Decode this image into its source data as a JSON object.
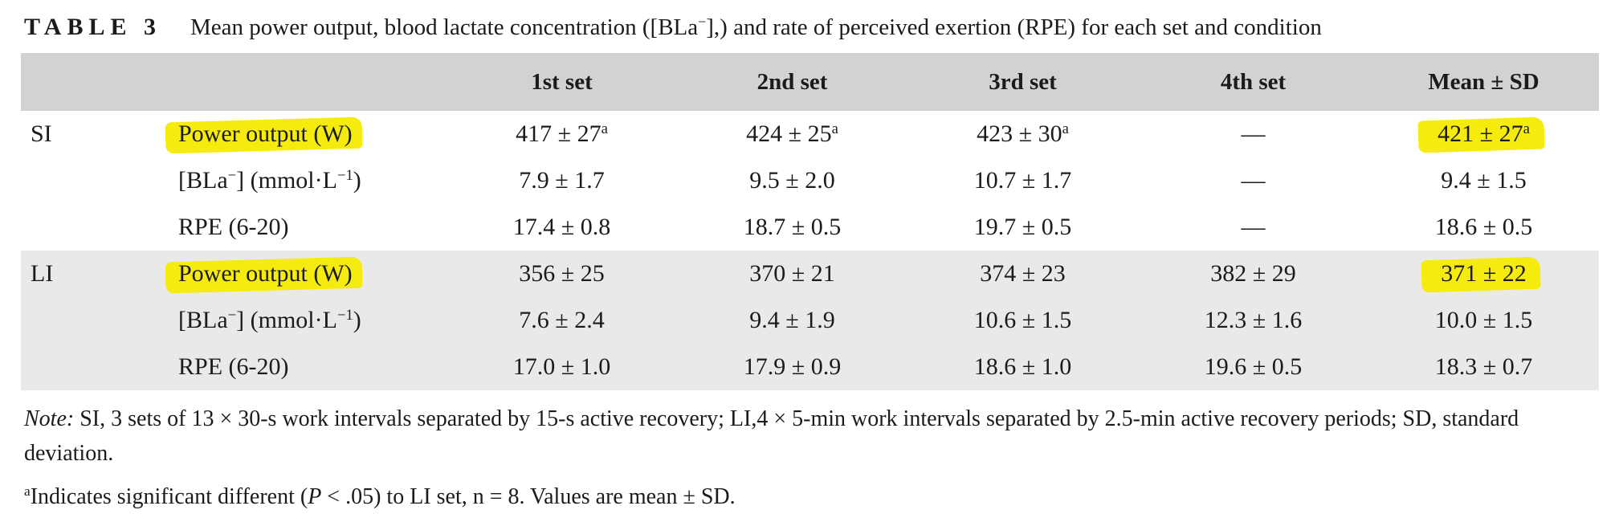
{
  "title": {
    "label": "TABLE 3",
    "segments": [
      {
        "t": "Mean power output, blood lactate concentration ([BLa"
      },
      {
        "t": "−",
        "sup": true
      },
      {
        "t": "],) and rate of perceived exertion (RPE) for each set and condition"
      }
    ]
  },
  "table": {
    "header": [
      "",
      "",
      "1st set",
      "2nd set",
      "3rd set",
      "4th set",
      "Mean ± SD"
    ],
    "groups": [
      {
        "name": "SI",
        "shaded": false,
        "rows": [
          {
            "label": {
              "segments": [
                {
                  "t": "Power output (W)"
                }
              ],
              "highlight": true
            },
            "cells": [
              {
                "text": "417 ± 27",
                "sup": "a"
              },
              {
                "text": "424 ± 25",
                "sup": "a"
              },
              {
                "text": "423 ± 30",
                "sup": "a"
              },
              {
                "text": "—"
              },
              {
                "text": "421 ± 27",
                "sup": "a",
                "highlight": true
              }
            ]
          },
          {
            "label": {
              "segments": [
                {
                  "t": "[BLa"
                },
                {
                  "t": "−",
                  "sup": true
                },
                {
                  "t": "] (mmol·L"
                },
                {
                  "t": "−1",
                  "sup": true
                },
                {
                  "t": ")"
                }
              ],
              "highlight": false
            },
            "cells": [
              {
                "text": "7.9 ± 1.7"
              },
              {
                "text": "9.5 ± 2.0"
              },
              {
                "text": "10.7 ± 1.7"
              },
              {
                "text": "—"
              },
              {
                "text": "9.4 ± 1.5"
              }
            ]
          },
          {
            "label": {
              "segments": [
                {
                  "t": "RPE (6-20)"
                }
              ],
              "highlight": false
            },
            "cells": [
              {
                "text": "17.4 ± 0.8"
              },
              {
                "text": "18.7 ± 0.5"
              },
              {
                "text": "19.7 ± 0.5"
              },
              {
                "text": "—"
              },
              {
                "text": "18.6 ± 0.5"
              }
            ]
          }
        ]
      },
      {
        "name": "LI",
        "shaded": true,
        "rows": [
          {
            "label": {
              "segments": [
                {
                  "t": "Power output (W)"
                }
              ],
              "highlight": true
            },
            "cells": [
              {
                "text": "356 ± 25"
              },
              {
                "text": "370 ± 21"
              },
              {
                "text": "374 ± 23"
              },
              {
                "text": "382 ± 29"
              },
              {
                "text": "371 ± 22",
                "highlight": true
              }
            ]
          },
          {
            "label": {
              "segments": [
                {
                  "t": "[BLa"
                },
                {
                  "t": "−",
                  "sup": true
                },
                {
                  "t": "] (mmol·L"
                },
                {
                  "t": "−1",
                  "sup": true
                },
                {
                  "t": ")"
                }
              ],
              "highlight": false
            },
            "cells": [
              {
                "text": "7.6 ± 2.4"
              },
              {
                "text": "9.4 ± 1.9"
              },
              {
                "text": "10.6 ± 1.5"
              },
              {
                "text": "12.3 ± 1.6"
              },
              {
                "text": "10.0 ± 1.5"
              }
            ]
          },
          {
            "label": {
              "segments": [
                {
                  "t": "RPE (6-20)"
                }
              ],
              "highlight": false
            },
            "cells": [
              {
                "text": "17.0 ± 1.0"
              },
              {
                "text": "17.9 ± 0.9"
              },
              {
                "text": "18.6 ± 1.0"
              },
              {
                "text": "19.6 ± 0.5"
              },
              {
                "text": "18.3 ± 0.7"
              }
            ]
          }
        ]
      }
    ]
  },
  "notes": {
    "note_prefix": "Note:",
    "note_text": " SI, 3 sets of 13 × 30-s work intervals separated by 15-s active recovery; LI,4 × 5-min work intervals separated by 2.5-min active recovery periods; SD, standard deviation.",
    "footnote_marker": "a",
    "footnote_segments": [
      {
        "t": "Indicates significant different ("
      },
      {
        "t": "P",
        "italic": true
      },
      {
        "t": " < .05) to LI set, n = 8. Values are mean ± SD."
      }
    ]
  },
  "colors": {
    "header_bg": "#d2d2d2",
    "li_row_shade": "#e9e9e9",
    "highlight_yellow": "#f5eb0c",
    "text": "#1b1b1b"
  }
}
